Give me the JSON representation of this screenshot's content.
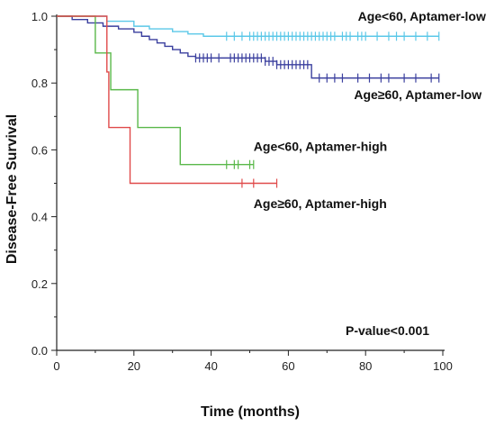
{
  "chart_data": {
    "type": "line",
    "subtype": "kaplan-meier",
    "xlabel": "Time (months)",
    "ylabel": "Disease-Free Survival",
    "xlim": [
      0,
      100
    ],
    "ylim": [
      0,
      1.0
    ],
    "x_ticks": [
      "0",
      "20",
      "40",
      "60",
      "80",
      "100"
    ],
    "y_ticks": [
      "0.0",
      "0.2",
      "0.4",
      "0.6",
      "0.8",
      "1.0"
    ],
    "grid": false,
    "annotation": "P-value<0.001",
    "series": [
      {
        "name": "Age<60, Aptamer-low",
        "color": "#5bc8e8",
        "steps": [
          [
            0,
            1.0
          ],
          [
            13,
            0.985
          ],
          [
            20,
            0.97
          ],
          [
            24,
            0.962
          ],
          [
            30,
            0.954
          ],
          [
            34,
            0.947
          ],
          [
            38,
            0.94
          ],
          [
            99,
            0.94
          ]
        ],
        "censored_x": [
          44,
          46,
          48,
          50,
          51,
          52,
          53,
          54,
          55,
          56,
          57,
          58,
          59,
          60,
          61,
          62,
          63,
          64,
          65,
          66,
          67,
          68,
          69,
          70,
          71,
          72,
          74,
          75,
          76,
          78,
          79,
          80,
          83,
          86,
          88,
          90,
          93,
          96,
          99
        ],
        "label_anchor": [
          78,
          1.0
        ]
      },
      {
        "name": "Age≥60, Aptamer-low",
        "color": "#3a3f9e",
        "steps": [
          [
            0,
            1.0
          ],
          [
            4,
            0.99
          ],
          [
            8,
            0.98
          ],
          [
            12,
            0.97
          ],
          [
            16,
            0.962
          ],
          [
            20,
            0.952
          ],
          [
            22,
            0.94
          ],
          [
            24,
            0.93
          ],
          [
            26,
            0.92
          ],
          [
            28,
            0.91
          ],
          [
            30,
            0.9
          ],
          [
            32,
            0.89
          ],
          [
            34,
            0.88
          ],
          [
            36,
            0.875
          ],
          [
            54,
            0.865
          ],
          [
            57,
            0.855
          ],
          [
            66,
            0.815
          ],
          [
            99,
            0.815
          ]
        ],
        "censored_x": [
          36,
          37,
          38,
          39,
          40,
          42,
          45,
          46,
          47,
          48,
          49,
          50,
          51,
          52,
          53,
          54,
          55,
          56,
          57,
          58,
          59,
          60,
          61,
          62,
          63,
          64,
          65,
          68,
          70,
          72,
          74,
          78,
          81,
          84,
          86,
          90,
          93,
          97,
          99
        ],
        "label_anchor": [
          77,
          0.765
        ]
      },
      {
        "name": "Age<60, Aptamer-high",
        "color": "#5ab84a",
        "steps": [
          [
            0,
            1.0
          ],
          [
            9,
            1.0
          ],
          [
            10,
            0.89
          ],
          [
            14,
            0.89
          ],
          [
            14,
            0.78
          ],
          [
            21,
            0.78
          ],
          [
            21,
            0.667
          ],
          [
            32,
            0.667
          ],
          [
            32,
            0.556
          ],
          [
            51,
            0.556
          ]
        ],
        "censored_x": [
          44,
          46,
          47,
          50,
          51
        ],
        "label_anchor": [
          51,
          0.61
        ]
      },
      {
        "name": "Age≥60, Aptamer-high",
        "color": "#e04a4a",
        "steps": [
          [
            0,
            1.0
          ],
          [
            13,
            1.0
          ],
          [
            13,
            0.833
          ],
          [
            13.5,
            0.667
          ],
          [
            19,
            0.667
          ],
          [
            19,
            0.5
          ],
          [
            57,
            0.5
          ]
        ],
        "censored_x": [
          48,
          51,
          57
        ],
        "label_anchor": [
          51,
          0.44
        ]
      }
    ]
  }
}
